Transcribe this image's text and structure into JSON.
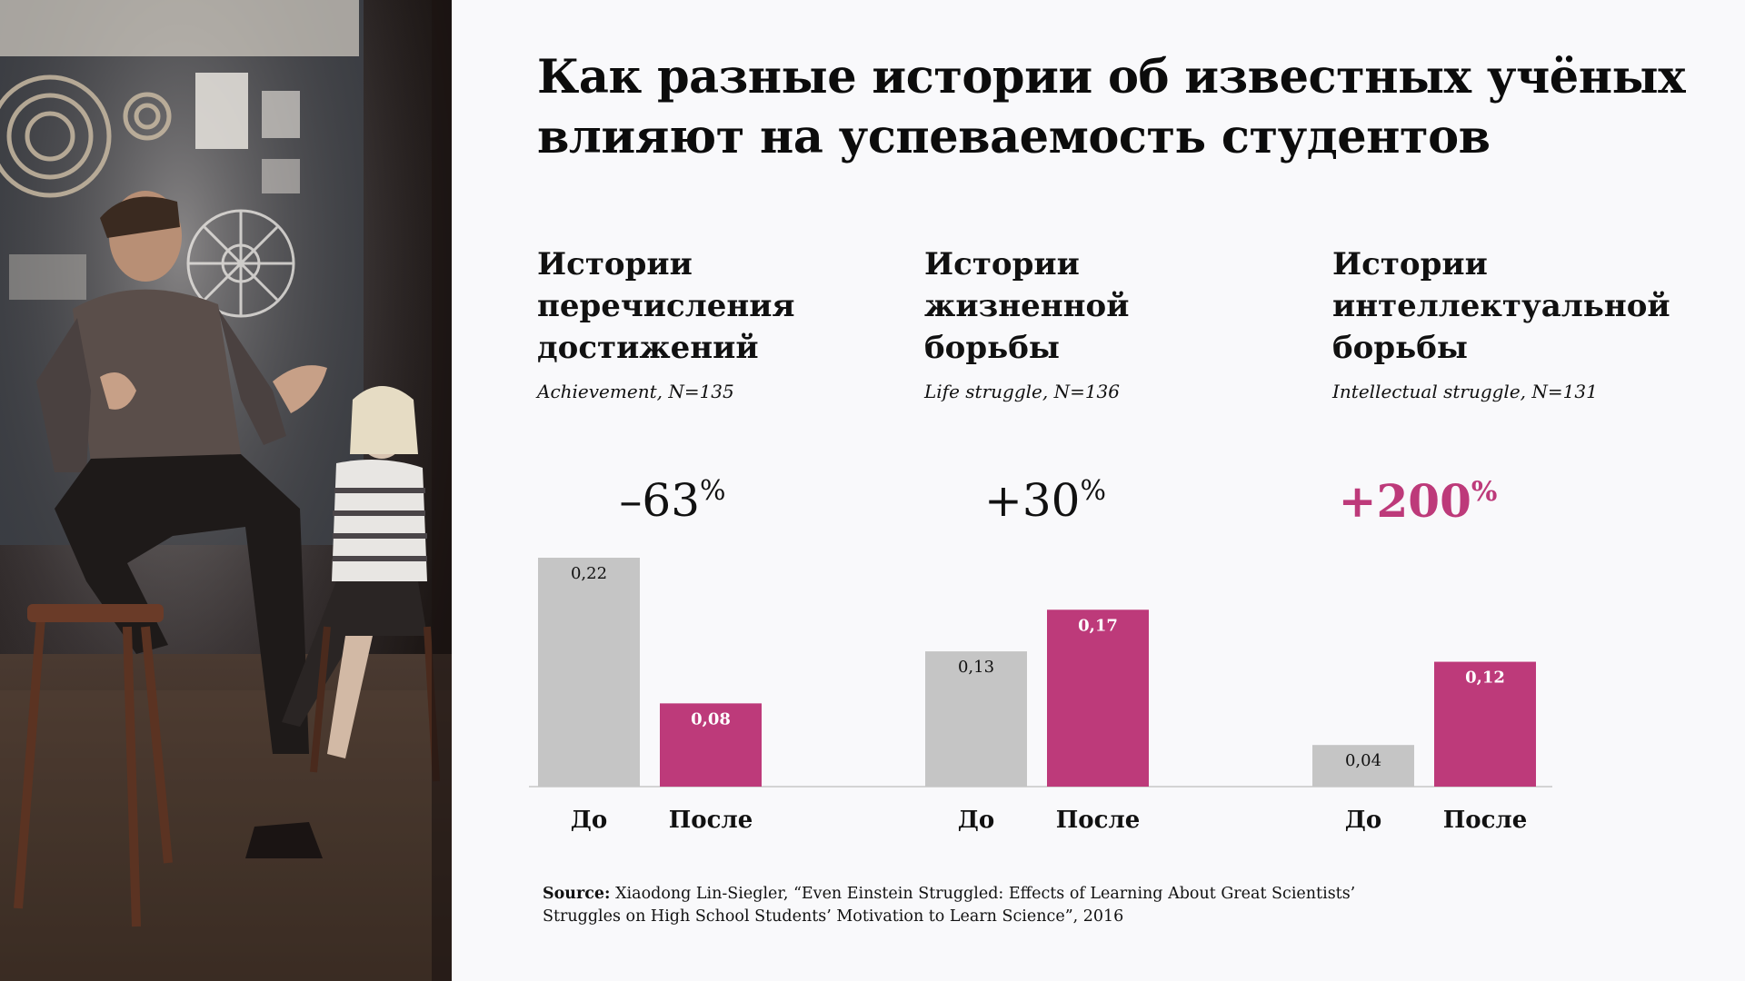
{
  "title_line1": "Как разные истории об известных учёных",
  "title_line2": "влияют на успеваемость студентов",
  "groups": [
    {
      "title_lines": [
        "Истории",
        "перечисления",
        "достижений"
      ],
      "subtitle": "Achievement, N=135",
      "change": "–63",
      "change_unit": "%",
      "accent": false
    },
    {
      "title_lines": [
        "Истории",
        "жизненной",
        "борьбы"
      ],
      "subtitle": "Life struggle, N=136",
      "change": "+30",
      "change_unit": "%",
      "accent": false
    },
    {
      "title_lines": [
        "Истории",
        "интеллектуальной",
        "борьбы"
      ],
      "subtitle": "Intellectual struggle, N=131",
      "change": "+200",
      "change_unit": "%",
      "accent": true
    }
  ],
  "source_label": "Source:",
  "source_line1": "Xiaodong Lin-Siegler, “Even Einstein Struggled: Effects of Learning About Great Scientists’",
  "source_line2": "Struggles on High School Students’ Motivation to Learn Science”, 2016",
  "colors": {
    "before": "#c5c5c5",
    "after": "#bd3a7a",
    "accent_text": "#bd3a7a"
  },
  "chart_data": {
    "type": "bar",
    "categories": [
      "До",
      "После"
    ],
    "groups": [
      {
        "name": "Achievement",
        "values": [
          0.22,
          0.08
        ],
        "labels": [
          "0,22",
          "0,08"
        ]
      },
      {
        "name": "Life struggle",
        "values": [
          0.13,
          0.17
        ],
        "labels": [
          "0,13",
          "0,17"
        ]
      },
      {
        "name": "Intellectual struggle",
        "values": [
          0.04,
          0.12
        ],
        "labels": [
          "0,04",
          "0,12"
        ]
      }
    ],
    "ylim": [
      0,
      0.22
    ],
    "grid": false,
    "legend": "none"
  }
}
